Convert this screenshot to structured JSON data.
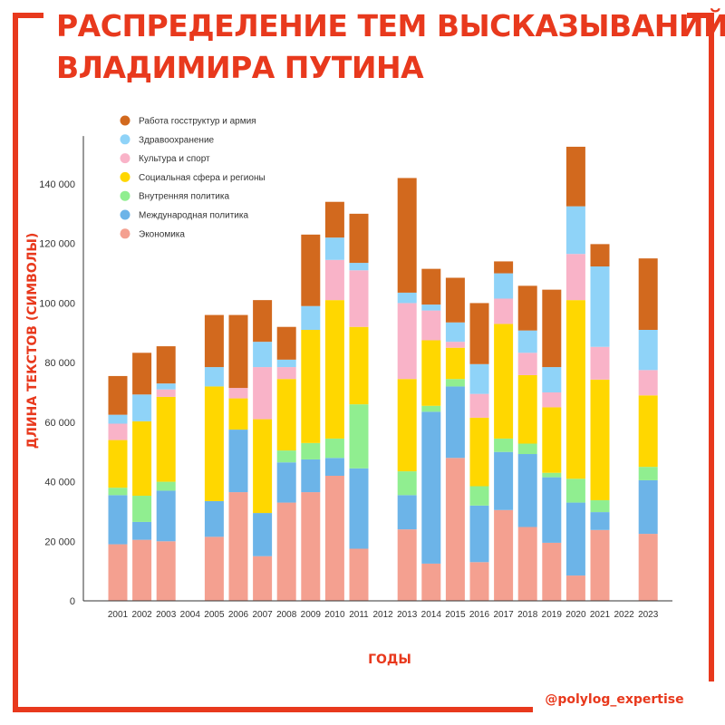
{
  "page": {
    "title_line1": "РАСПРЕДЕЛЕНИЕ ТЕМ ВЫСКАЗЫВАНИЙ",
    "title_line2": "ВЛАДИМИРА ПУТИНА",
    "handle": "@polylog_expertise",
    "accent_color": "#e8391d"
  },
  "chart_data": {
    "type": "bar",
    "stacked": true,
    "xlabel": "ГОДЫ",
    "ylabel": "ДЛИНА ТЕКСТОВ (СИМВОЛЫ)",
    "ylim": [
      0,
      150000
    ],
    "yticks": [
      0,
      20000,
      40000,
      60000,
      80000,
      100000,
      120000,
      140000
    ],
    "ytick_labels": [
      "0",
      "20 000",
      "40 000",
      "60 000",
      "80 000",
      "100 000",
      "120 000",
      "140 000"
    ],
    "legend_position": "top-left",
    "categories": [
      "2001",
      "2002",
      "2003",
      "2004",
      "2005",
      "2006",
      "2007",
      "2008",
      "2009",
      "2010",
      "2011",
      "2012",
      "2013",
      "2014",
      "2015",
      "2016",
      "2017",
      "2018",
      "2019",
      "2020",
      "2021",
      "2022",
      "2023"
    ],
    "series": [
      {
        "name": "Экономика",
        "color": "#f4a090",
        "values": [
          19000,
          20500,
          20000,
          0,
          21500,
          36500,
          15000,
          33000,
          36500,
          42000,
          17500,
          0,
          24000,
          12500,
          48000,
          13000,
          30500,
          24800,
          19500,
          8500,
          23800,
          0,
          22500
        ]
      },
      {
        "name": "Международная политика",
        "color": "#6cb4e8",
        "values": [
          16500,
          6000,
          17000,
          0,
          12000,
          21000,
          14500,
          13500,
          11000,
          6000,
          27000,
          0,
          11500,
          51000,
          24000,
          19000,
          19500,
          24500,
          22000,
          24500,
          6000,
          0,
          18000
        ]
      },
      {
        "name": "Внутренняя политика",
        "color": "#90ee90",
        "values": [
          2500,
          8800,
          3000,
          0,
          0,
          0,
          0,
          4000,
          5500,
          6500,
          21500,
          0,
          8000,
          2000,
          2500,
          6500,
          4500,
          3500,
          1500,
          8000,
          4000,
          0,
          4500
        ]
      },
      {
        "name": "Социальная сфера и регионы",
        "color": "#ffd700",
        "values": [
          16000,
          25000,
          28500,
          0,
          38500,
          10500,
          31500,
          24000,
          38000,
          46500,
          26000,
          0,
          31000,
          22000,
          10500,
          23000,
          38500,
          23000,
          22000,
          60000,
          40500,
          0,
          24000
        ]
      },
      {
        "name": "Культура и спорт",
        "color": "#f9b3c8",
        "values": [
          5500,
          0,
          2500,
          0,
          0,
          3500,
          17500,
          4000,
          0,
          13500,
          19000,
          0,
          25500,
          10000,
          2000,
          8000,
          8500,
          7500,
          5000,
          15500,
          11000,
          0,
          8500
        ]
      },
      {
        "name": "Здравоохранение",
        "color": "#8fd3f8",
        "values": [
          3000,
          9000,
          2000,
          0,
          6500,
          0,
          8500,
          2500,
          8000,
          7500,
          2500,
          0,
          3500,
          2000,
          6500,
          10000,
          8500,
          7500,
          8500,
          16000,
          27000,
          0,
          13500
        ]
      },
      {
        "name": "Работа госструктур и армия",
        "color": "#d2691e",
        "values": [
          13000,
          14000,
          12500,
          0,
          17500,
          24500,
          14000,
          11000,
          24000,
          12000,
          16500,
          0,
          38500,
          12000,
          15000,
          20500,
          4000,
          15000,
          26000,
          20000,
          7500,
          0,
          24000
        ]
      }
    ]
  }
}
